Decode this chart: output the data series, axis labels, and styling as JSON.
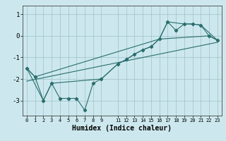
{
  "title": "",
  "xlabel": "Humidex (Indice chaleur)",
  "bg_color": "#cce8ee",
  "line_color": "#2a6e6e",
  "xlim": [
    -0.5,
    23.5
  ],
  "ylim": [
    -3.7,
    1.4
  ],
  "yticks": [
    -3,
    -2,
    -1,
    0,
    1
  ],
  "xticks": [
    0,
    1,
    2,
    3,
    4,
    5,
    6,
    7,
    8,
    9,
    11,
    12,
    13,
    14,
    15,
    16,
    17,
    18,
    19,
    20,
    21,
    22,
    23
  ],
  "main_x": [
    0,
    1,
    2,
    3,
    4,
    5,
    6,
    7,
    8,
    9,
    11,
    12,
    13,
    14,
    15,
    16,
    17,
    18,
    19,
    20,
    21,
    22,
    23
  ],
  "main_y": [
    -1.5,
    -1.9,
    -3.0,
    -2.2,
    -2.9,
    -2.9,
    -2.9,
    -3.45,
    -2.2,
    -2.0,
    -1.3,
    -1.1,
    -0.85,
    -0.65,
    -0.5,
    -0.15,
    0.65,
    0.25,
    0.55,
    0.55,
    0.5,
    0.0,
    -0.2
  ],
  "trend_x": [
    0,
    23
  ],
  "trend_y": [
    -2.1,
    -0.3
  ],
  "upper_x": [
    0,
    1,
    16,
    17,
    19,
    20,
    21,
    23
  ],
  "upper_y": [
    -1.5,
    -1.9,
    -0.15,
    0.65,
    0.55,
    0.55,
    0.5,
    -0.2
  ],
  "lower_x": [
    0,
    2,
    3,
    9,
    11,
    12,
    13,
    14,
    15,
    16,
    22,
    23
  ],
  "lower_y": [
    -1.5,
    -3.0,
    -2.2,
    -2.0,
    -1.3,
    -1.1,
    -0.85,
    -0.65,
    -0.5,
    -0.15,
    0.0,
    -0.2
  ]
}
